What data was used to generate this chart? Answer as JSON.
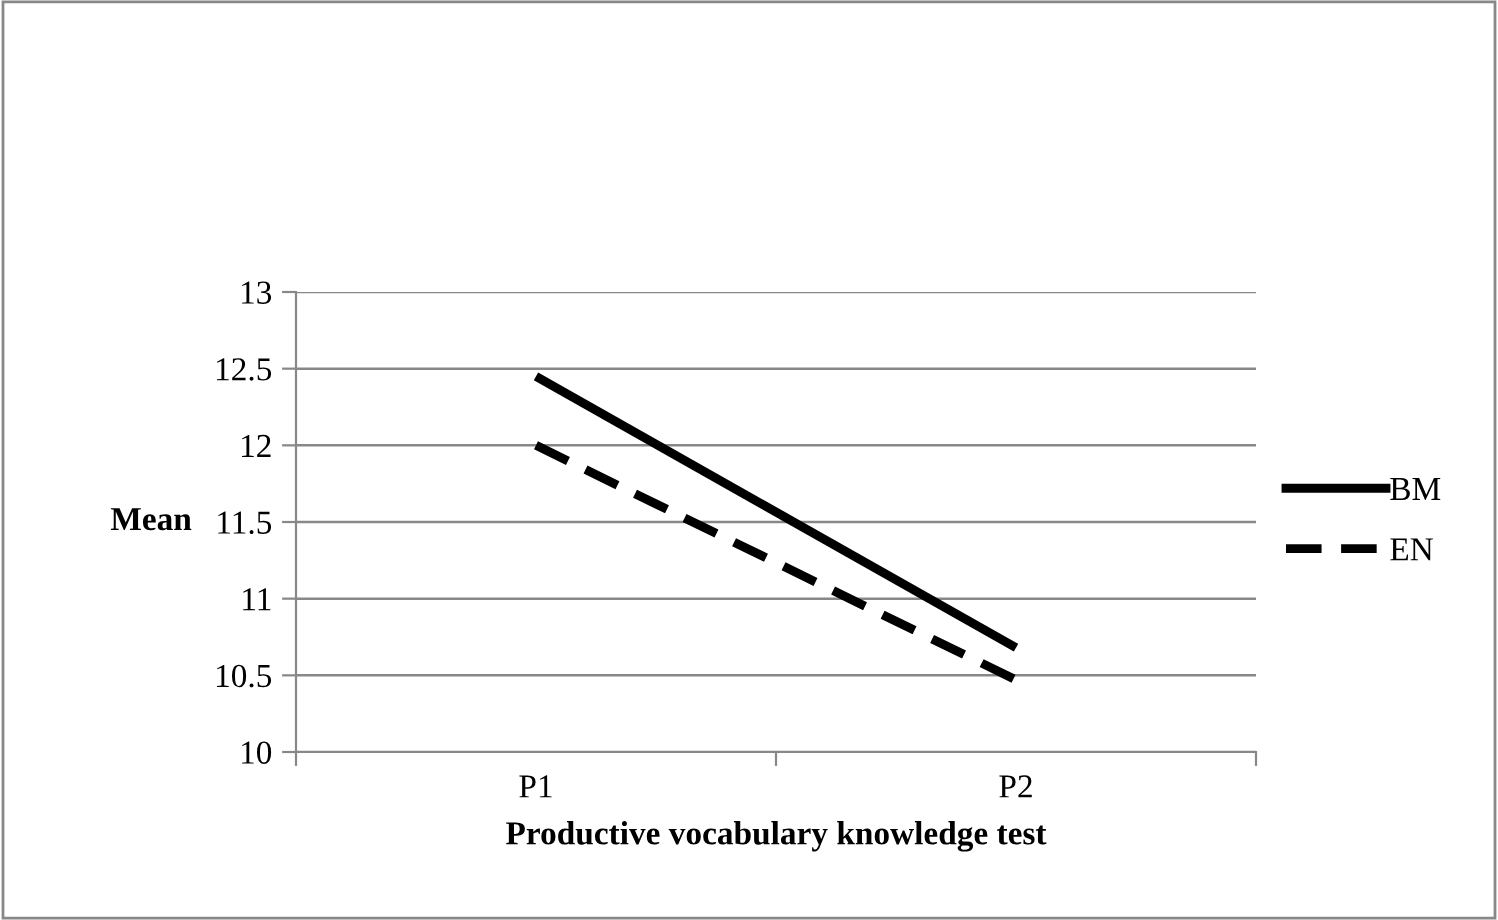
{
  "chart_data": {
    "type": "line",
    "xlabel": "Productive vocabulary knowledge test",
    "ylabel": "Mean",
    "categories": [
      "P1",
      "P2"
    ],
    "series": [
      {
        "name": "BM",
        "color": "#000000",
        "values": [
          12.45,
          10.68
        ],
        "line_style": "solid"
      },
      {
        "name": "EN",
        "color": "#000000",
        "values": [
          12.0,
          10.47
        ],
        "line_style": "dashed"
      }
    ],
    "ylim": [
      10,
      13
    ],
    "yticks": [
      10,
      10.5,
      11,
      11.5,
      12,
      12.5,
      13
    ],
    "grid": "y",
    "legend": "right",
    "marker": "none"
  }
}
